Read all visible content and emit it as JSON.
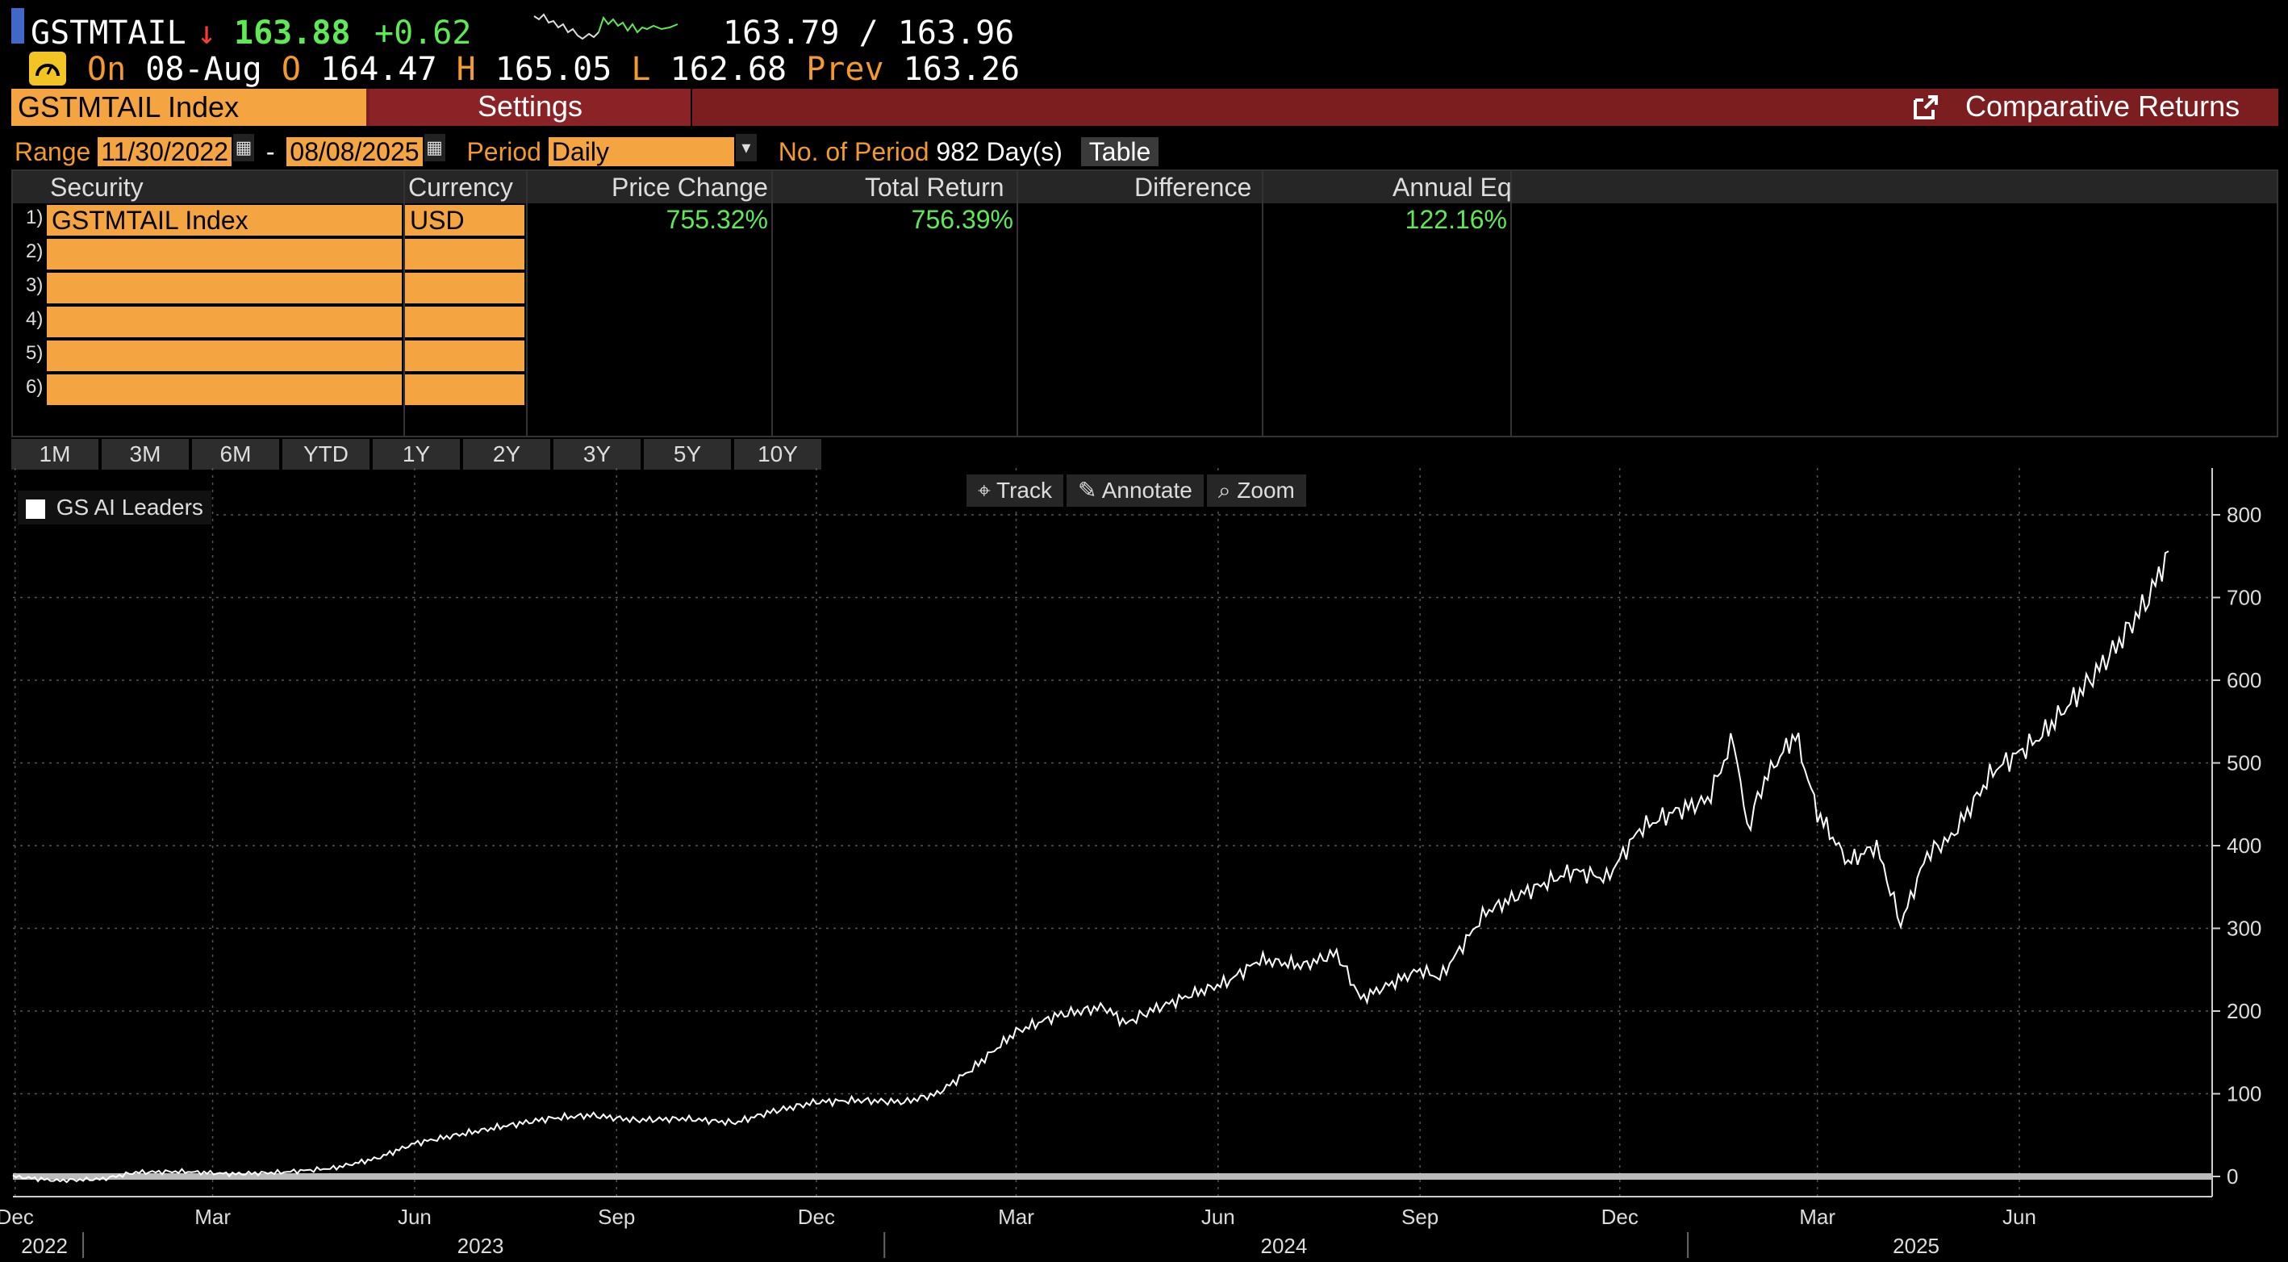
{
  "ticker": {
    "symbol": "GSTMTAIL",
    "direction_arrow": "↓",
    "last": "163.88",
    "change": "+0.62",
    "bid_ask": "163.79 / 163.96"
  },
  "ohlc": {
    "on_label": "On",
    "date": "08-Aug",
    "open_label": "O",
    "open": "164.47",
    "high_label": "H",
    "high": "165.05",
    "low_label": "L",
    "low": "162.68",
    "prev_label": "Prev",
    "prev": "163.26"
  },
  "title_bar": {
    "security": "GSTMTAIL Index",
    "settings_label": "Settings",
    "function_title": "Comparative Returns"
  },
  "range": {
    "range_label": "Range",
    "start": "11/30/2022",
    "dash": "-",
    "end": "08/08/2025",
    "period_label": "Period",
    "period_value": "Daily",
    "num_periods_label": "No. of Period",
    "num_periods_value": "982 Day(s)",
    "table_button": "Table"
  },
  "table": {
    "headers": [
      "Security",
      "Currency",
      "Price Change",
      "Total Return",
      "Difference",
      "Annual Eq"
    ],
    "rows": [
      {
        "num": "1)",
        "security": "GSTMTAIL Index",
        "currency": "USD",
        "price_change": "755.32%",
        "total_return": "756.39%",
        "difference": "",
        "annual_eq": "122.16%"
      },
      {
        "num": "2)",
        "security": "",
        "currency": ""
      },
      {
        "num": "3)",
        "security": "",
        "currency": ""
      },
      {
        "num": "4)",
        "security": "",
        "currency": ""
      },
      {
        "num": "5)",
        "security": "",
        "currency": ""
      },
      {
        "num": "6)",
        "security": "",
        "currency": ""
      }
    ]
  },
  "period_buttons": [
    "1M",
    "3M",
    "6M",
    "YTD",
    "1Y",
    "2Y",
    "3Y",
    "5Y",
    "10Y"
  ],
  "chart_tools": [
    "Track",
    "Annotate",
    "Zoom"
  ],
  "colors": {
    "accent": "#f4a541",
    "title_bar": "#7c1d20",
    "positive": "#5eea55",
    "negative": "#ff3b30"
  },
  "chart_data": {
    "type": "line",
    "series": [
      {
        "name": "GS AI Leaders",
        "points": [
          [
            "2022-11-30",
            0
          ],
          [
            "2022-12-20",
            -5
          ],
          [
            "2023-01-10",
            -3
          ],
          [
            "2023-01-25",
            5
          ],
          [
            "2023-02-15",
            6
          ],
          [
            "2023-03-10",
            3
          ],
          [
            "2023-04-01",
            5
          ],
          [
            "2023-04-25",
            10
          ],
          [
            "2023-05-15",
            22
          ],
          [
            "2023-06-01",
            40
          ],
          [
            "2023-06-20",
            50
          ],
          [
            "2023-07-10",
            60
          ],
          [
            "2023-08-01",
            70
          ],
          [
            "2023-08-20",
            74
          ],
          [
            "2023-09-10",
            68
          ],
          [
            "2023-10-01",
            70
          ],
          [
            "2023-10-25",
            65
          ],
          [
            "2023-11-10",
            78
          ],
          [
            "2023-12-01",
            90
          ],
          [
            "2023-12-20",
            92
          ],
          [
            "2024-01-10",
            90
          ],
          [
            "2024-01-25",
            100
          ],
          [
            "2024-02-10",
            130
          ],
          [
            "2024-03-01",
            175
          ],
          [
            "2024-03-20",
            195
          ],
          [
            "2024-04-10",
            205
          ],
          [
            "2024-04-20",
            185
          ],
          [
            "2024-05-01",
            200
          ],
          [
            "2024-05-20",
            220
          ],
          [
            "2024-06-05",
            235
          ],
          [
            "2024-06-20",
            262
          ],
          [
            "2024-07-10",
            255
          ],
          [
            "2024-07-25",
            270
          ],
          [
            "2024-08-05",
            215
          ],
          [
            "2024-08-15",
            228
          ],
          [
            "2024-09-01",
            250
          ],
          [
            "2024-09-10",
            240
          ],
          [
            "2024-10-01",
            320
          ],
          [
            "2024-10-20",
            345
          ],
          [
            "2024-11-10",
            370
          ],
          [
            "2024-11-25",
            360
          ],
          [
            "2024-12-10",
            420
          ],
          [
            "2024-12-25",
            440
          ],
          [
            "2025-01-10",
            455
          ],
          [
            "2025-01-22",
            530
          ],
          [
            "2025-01-28",
            420
          ],
          [
            "2025-02-05",
            480
          ],
          [
            "2025-02-19",
            535
          ],
          [
            "2025-03-01",
            440
          ],
          [
            "2025-03-15",
            380
          ],
          [
            "2025-03-28",
            400
          ],
          [
            "2025-04-08",
            305
          ],
          [
            "2025-04-20",
            390
          ],
          [
            "2025-05-01",
            410
          ],
          [
            "2025-05-20",
            490
          ],
          [
            "2025-06-10",
            530
          ],
          [
            "2025-06-30",
            590
          ],
          [
            "2025-07-15",
            640
          ],
          [
            "2025-07-30",
            700
          ],
          [
            "2025-08-08",
            756
          ]
        ]
      }
    ],
    "baseline": 0,
    "y_ticks": [
      "0",
      "100",
      "200",
      "300",
      "400",
      "500",
      "600",
      "700",
      "800"
    ],
    "ylim": [
      0,
      800
    ],
    "x_ticks": [
      "Dec",
      "Mar",
      "Jun",
      "Sep",
      "Dec",
      "Mar",
      "Jun",
      "Sep",
      "Dec",
      "Mar",
      "Jun"
    ],
    "x_years": [
      "2022",
      "2023",
      "2024",
      "2025"
    ],
    "xlim": [
      "2022-11-30",
      "2025-08-08"
    ],
    "grid": true,
    "legend_position": "top-left",
    "y_axis_position": "right"
  }
}
